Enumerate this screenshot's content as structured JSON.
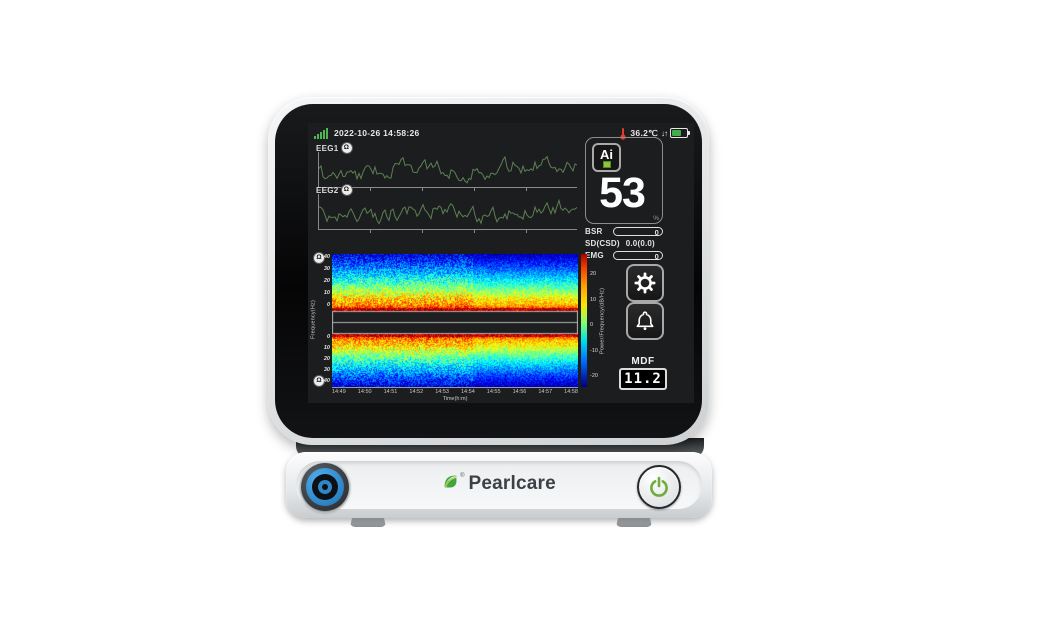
{
  "status_bar": {
    "datetime": "2022-10-26 14:58:26",
    "temperature": "36.2℃",
    "arrows": "↓↑"
  },
  "eeg": {
    "channel1_label": "EEG1",
    "channel2_label": "EEG2",
    "impedance_glyph": "Ω"
  },
  "index_panel": {
    "logo": "Ai",
    "value": "53",
    "unit": "%"
  },
  "metrics": {
    "bsr_label": "BSR",
    "bsr_value": "0",
    "sd_label": "SD(CSD)",
    "sd_value": "0.0(0.0)",
    "emg_label": "EMG",
    "emg_value": "0"
  },
  "mdf": {
    "label": "MDF",
    "value": "11.2"
  },
  "spectrogram": {
    "ylabel": "Frequency(Hz)",
    "freq_ticks_top": [
      "40",
      "30",
      "20",
      "10",
      "0"
    ],
    "freq_ticks_bottom": [
      "0",
      "10",
      "20",
      "30",
      "40"
    ],
    "xlabel": "Time(h:m)",
    "time_ticks": [
      "14:49",
      "14:50",
      "14:51",
      "14:52",
      "14:53",
      "14:54",
      "14:55",
      "14:56",
      "14:57",
      "14:58"
    ],
    "colorbar_label": "Power/Frequency(dB/Hz)",
    "colorbar_ticks": [
      "20",
      "10",
      "0",
      "-10",
      "-20"
    ]
  },
  "brand": {
    "name": "Pearlcare",
    "reg": "®"
  },
  "colors": {
    "accent_green": "#4db84f",
    "alarm_red": "#e23b2e",
    "knob_blue": "#2e86c8",
    "power_green": "#6fae3d",
    "screen_bg": "#1c1d1f"
  }
}
